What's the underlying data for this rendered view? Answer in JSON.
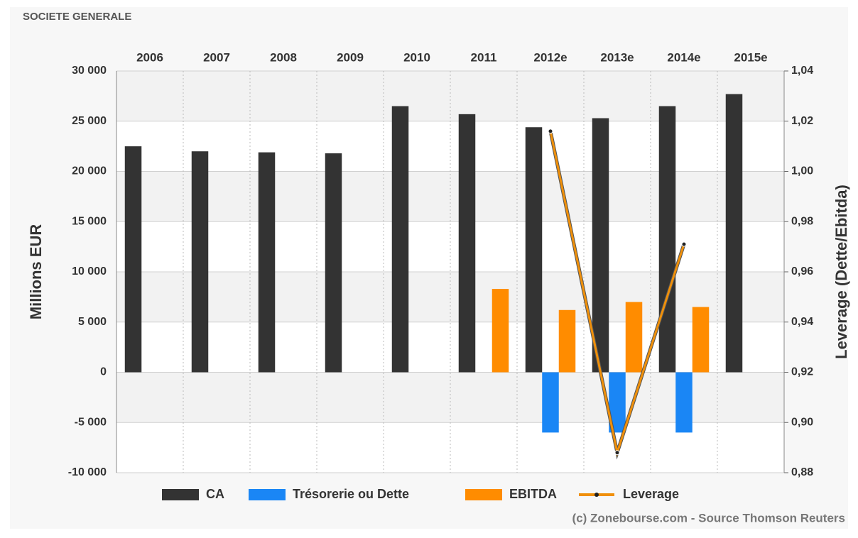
{
  "chart_data": {
    "type": "bar",
    "title": "SOCIETE GENERALE",
    "ylabel": "Millions EUR",
    "y2label": "Leverage (Dette/Ebitda)",
    "credit": "(c) Zonebourse.com - Source Thomson Reuters",
    "categories": [
      "2006",
      "2007",
      "2008",
      "2009",
      "2010",
      "2011",
      "2012e",
      "2013e",
      "2014e",
      "2015e"
    ],
    "series": [
      {
        "name": "CA",
        "color": "#333333",
        "values": [
          22500,
          22000,
          21900,
          21800,
          26500,
          25700,
          24400,
          25300,
          26500,
          27700
        ]
      },
      {
        "name": "Trésorerie ou Dette",
        "color": "#1a86f5",
        "values": [
          null,
          null,
          null,
          null,
          null,
          null,
          -6000,
          -6000,
          -6000,
          null
        ]
      },
      {
        "name": "EBITDA",
        "color": "#ff8c00",
        "values": [
          null,
          null,
          null,
          null,
          null,
          8300,
          6200,
          7000,
          6500,
          null
        ]
      },
      {
        "name": "Leverage",
        "color": "#f0900a",
        "type": "line",
        "axis": "y2",
        "values": [
          null,
          null,
          null,
          null,
          null,
          null,
          1.016,
          0.888,
          0.971,
          null
        ]
      }
    ],
    "ylim": [
      -10000,
      30000
    ],
    "yticks": [
      {
        "value": -10000,
        "label": "-10 000"
      },
      {
        "value": -5000,
        "label": "-5 000"
      },
      0,
      {
        "value": 5000,
        "label": "5 000"
      },
      {
        "value": 10000,
        "label": "10 000"
      },
      {
        "value": 15000,
        "label": "15 000"
      },
      {
        "value": 20000,
        "label": "20 000"
      },
      {
        "value": 25000,
        "label": "25 000"
      },
      {
        "value": 30000,
        "label": "30 000"
      }
    ],
    "y2lim": [
      0.88,
      1.04
    ],
    "y2ticks": [
      {
        "value": 0.88,
        "label": "0,88"
      },
      {
        "value": 0.9,
        "label": "0,90"
      },
      {
        "value": 0.92,
        "label": "0,92"
      },
      {
        "value": 0.94,
        "label": "0,94"
      },
      {
        "value": 0.96,
        "label": "0,96"
      },
      {
        "value": 0.98,
        "label": "0,98"
      },
      {
        "value": 1.0,
        "label": "1,00"
      },
      {
        "value": 1.02,
        "label": "1,02"
      },
      {
        "value": 1.04,
        "label": "1,04"
      }
    ],
    "grid": true
  }
}
